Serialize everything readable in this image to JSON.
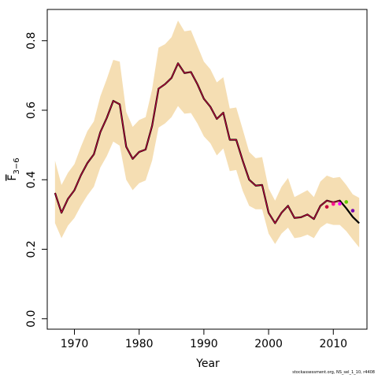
{
  "chart_data": {
    "type": "line",
    "xlabel": "Year",
    "ylabel_main": "F",
    "ylabel_sub": "3−6",
    "xlim": [
      1965.8,
      2015.2
    ],
    "ylim": [
      -0.03,
      0.89
    ],
    "x_ticks": [
      1970,
      1980,
      1990,
      2000,
      2010
    ],
    "y_ticks": [
      0.0,
      0.2,
      0.4,
      0.6,
      0.8
    ],
    "y_tick_labels": [
      "0.0",
      "0.2",
      "0.4",
      "0.6",
      "0.8"
    ],
    "grid": false,
    "legend": "none",
    "colors": {
      "band": "#f5deb3",
      "main_line": "#000000",
      "retro_line": "#c8003c",
      "point_2009": "#c8003c",
      "point_2010": "#ff1493",
      "point_2011": "#ff00ff",
      "point_2012": "#66cc00",
      "point_2013": "#7a00b0"
    },
    "years": [
      1967,
      1968,
      1969,
      1970,
      1971,
      1972,
      1973,
      1974,
      1975,
      1976,
      1977,
      1978,
      1979,
      1980,
      1981,
      1982,
      1983,
      1984,
      1985,
      1986,
      1987,
      1988,
      1989,
      1990,
      1991,
      1992,
      1993,
      1994,
      1995,
      1996,
      1997,
      1998,
      1999,
      2000,
      2001,
      2002,
      2003,
      2004,
      2005,
      2006,
      2007,
      2008,
      2009,
      2010,
      2011,
      2012,
      2013,
      2014
    ],
    "estimate": [
      0.362,
      0.305,
      0.345,
      0.37,
      0.413,
      0.448,
      0.473,
      0.537,
      0.578,
      0.627,
      0.617,
      0.495,
      0.46,
      0.48,
      0.487,
      0.555,
      0.662,
      0.675,
      0.693,
      0.735,
      0.707,
      0.71,
      0.675,
      0.633,
      0.61,
      0.575,
      0.593,
      0.515,
      0.515,
      0.455,
      0.4,
      0.383,
      0.385,
      0.305,
      0.275,
      0.305,
      0.325,
      0.29,
      0.292,
      0.3,
      0.287,
      0.325,
      0.34,
      0.335,
      0.34,
      0.318,
      0.293,
      0.275
    ],
    "upper": [
      0.455,
      0.385,
      0.42,
      0.445,
      0.495,
      0.54,
      0.568,
      0.64,
      0.69,
      0.745,
      0.74,
      0.595,
      0.552,
      0.572,
      0.58,
      0.66,
      0.78,
      0.79,
      0.81,
      0.858,
      0.827,
      0.83,
      0.785,
      0.74,
      0.718,
      0.68,
      0.695,
      0.605,
      0.608,
      0.545,
      0.48,
      0.462,
      0.465,
      0.375,
      0.34,
      0.38,
      0.405,
      0.35,
      0.36,
      0.37,
      0.35,
      0.395,
      0.412,
      0.405,
      0.408,
      0.385,
      0.358,
      0.348
    ],
    "lower": [
      0.275,
      0.232,
      0.268,
      0.29,
      0.325,
      0.355,
      0.38,
      0.435,
      0.468,
      0.51,
      0.498,
      0.4,
      0.37,
      0.39,
      0.398,
      0.455,
      0.55,
      0.562,
      0.58,
      0.612,
      0.59,
      0.592,
      0.562,
      0.525,
      0.505,
      0.47,
      0.49,
      0.425,
      0.428,
      0.368,
      0.325,
      0.315,
      0.315,
      0.245,
      0.215,
      0.245,
      0.262,
      0.232,
      0.235,
      0.242,
      0.232,
      0.262,
      0.275,
      0.27,
      0.27,
      0.252,
      0.228,
      0.205
    ],
    "retrospective_points": [
      {
        "year": 2009,
        "value": 0.322
      },
      {
        "year": 2010,
        "value": 0.33
      },
      {
        "year": 2011,
        "value": 0.331
      },
      {
        "year": 2012,
        "value": 0.336
      },
      {
        "year": 2013,
        "value": 0.311
      }
    ]
  },
  "credit": "stockassessment.org, NS_sel_1_10, r4408"
}
